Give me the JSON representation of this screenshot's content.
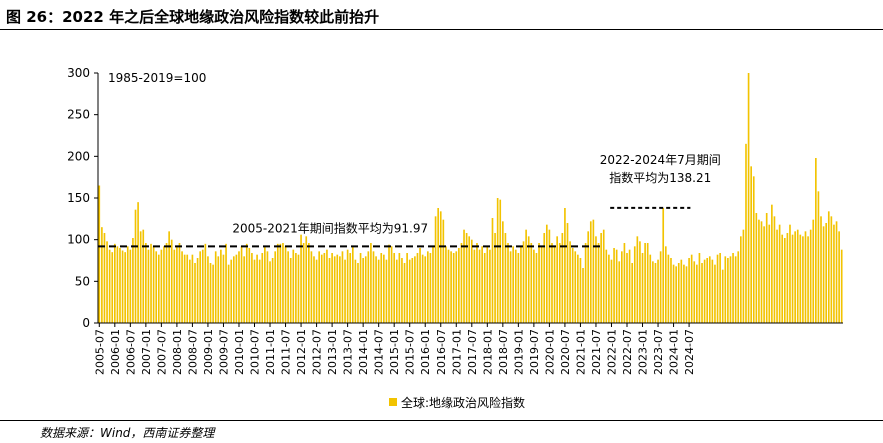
{
  "header": {
    "title": "图 26：2022 年之后全球地缘政治风险指数较此前抬升"
  },
  "footer": {
    "source": "数据来源：Wind，西南证券整理"
  },
  "colors": {
    "bar": "#F2C300",
    "mean_line": "#000000",
    "text": "#000000",
    "axis": "#000000"
  },
  "chart_data": {
    "type": "bar",
    "title": "",
    "xlabel": "",
    "ylabel": "",
    "ylim": [
      0,
      300
    ],
    "yticks": [
      0,
      50,
      100,
      150,
      200,
      250,
      300
    ],
    "xtick_labels": [
      "2005-07",
      "2006-01",
      "2006-07",
      "2007-01",
      "2007-07",
      "2008-01",
      "2008-07",
      "2009-01",
      "2009-07",
      "2010-01",
      "2010-07",
      "2011-01",
      "2011-07",
      "2012-01",
      "2012-07",
      "2013-01",
      "2013-07",
      "2014-01",
      "2014-07",
      "2015-01",
      "2015-07",
      "2016-01",
      "2016-07",
      "2017-01",
      "2017-07",
      "2018-01",
      "2018-07",
      "2019-01",
      "2019-07",
      "2020-01",
      "2020-07",
      "2021-01",
      "2021-07",
      "2022-01",
      "2022-07",
      "2023-01",
      "2023-07",
      "2024-01",
      "2024-07"
    ],
    "start_month": "2005-07",
    "series": [
      {
        "name": "全球:地缘政治风险指数",
        "values": [
          165,
          115,
          108,
          98,
          88,
          85,
          95,
          92,
          90,
          87,
          85,
          92,
          88,
          102,
          136,
          145,
          110,
          112,
          96,
          88,
          95,
          92,
          86,
          82,
          88,
          92,
          96,
          110,
          100,
          88,
          92,
          96,
          86,
          82,
          82,
          76,
          82,
          72,
          78,
          86,
          88,
          95,
          80,
          72,
          70,
          86,
          80,
          88,
          82,
          95,
          70,
          76,
          80,
          82,
          86,
          92,
          80,
          95,
          90,
          84,
          76,
          82,
          76,
          84,
          92,
          86,
          74,
          78,
          86,
          95,
          95,
          96,
          92,
          86,
          78,
          88,
          84,
          82,
          106,
          96,
          104,
          96,
          86,
          80,
          76,
          86,
          82,
          84,
          88,
          78,
          84,
          80,
          82,
          80,
          86,
          76,
          88,
          84,
          92,
          76,
          72,
          84,
          78,
          80,
          86,
          96,
          86,
          80,
          76,
          84,
          82,
          76,
          94,
          92,
          84,
          76,
          84,
          78,
          72,
          84,
          76,
          78,
          80,
          84,
          90,
          82,
          80,
          86,
          84,
          92,
          128,
          138,
          134,
          124,
          92,
          88,
          86,
          84,
          86,
          90,
          96,
          112,
          108,
          104,
          100,
          88,
          96,
          88,
          92,
          84,
          92,
          88,
          126,
          108,
          150,
          148,
          122,
          108,
          96,
          86,
          92,
          88,
          84,
          92,
          98,
          112,
          104,
          96,
          88,
          84,
          96,
          92,
          108,
          118,
          112,
          96,
          92,
          104,
          96,
          108,
          138,
          120,
          98,
          90,
          86,
          82,
          78,
          66,
          96,
          110,
          122,
          124,
          104,
          96,
          108,
          112,
          88,
          82,
          76,
          90,
          88,
          74,
          86,
          96,
          84,
          88,
          72,
          92,
          104,
          98,
          84,
          96,
          96,
          82,
          74,
          72,
          76,
          86,
          138,
          92,
          82,
          78,
          70,
          68,
          72,
          76,
          70,
          68,
          78,
          82,
          74,
          70,
          84,
          72,
          76,
          78,
          80,
          76,
          70,
          82,
          84,
          64,
          80,
          78,
          80,
          84,
          80,
          86,
          104,
          112,
          215,
          300,
          188,
          176,
          132,
          124,
          122,
          116,
          132,
          118,
          142,
          128,
          112,
          118,
          106,
          102,
          108,
          118,
          106,
          110,
          112,
          106,
          104,
          110,
          104,
          112,
          124,
          198,
          158,
          128,
          116,
          120,
          134,
          128,
          118,
          122,
          110,
          88
        ]
      }
    ],
    "mean_lines": [
      {
        "label": "2005-2021年期间指数平均为91.97",
        "value": 91.97,
        "from": "2005-07",
        "to": "2021-09"
      },
      {
        "label_lines": [
          "2022-2024年7月期间",
          "指数平均为138.21"
        ],
        "value": 138.21,
        "from": "2022-01",
        "to": "2024-07"
      }
    ],
    "annotations": [
      "1985-2019=100"
    ],
    "legend": {
      "position": "bottom-center",
      "entries": [
        "全球:地缘政治风险指数"
      ]
    },
    "grid": false
  }
}
